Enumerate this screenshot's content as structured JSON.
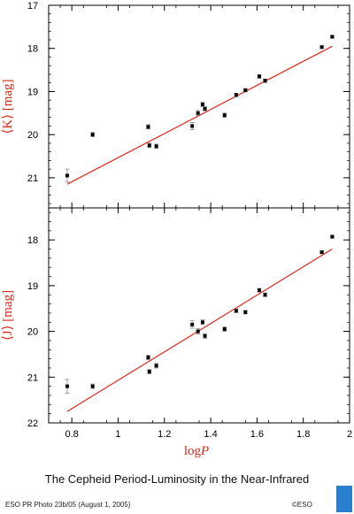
{
  "caption": "The Cepheid Period-Luminosity in the Near-Infrared",
  "credit_left": "ESO PR Photo 23b/05 (August 1, 2005)",
  "credit_right": "©ESO",
  "logo": "ESO",
  "colors": {
    "line": "#e22418",
    "label": "#d8281a",
    "points": "#000000",
    "error_bars": "#8a8a8a",
    "logo": "#2b7fd0"
  },
  "chart_data": [
    {
      "type": "scatter",
      "ylabel": "⟨K⟩ [mag]",
      "xlabel": "",
      "xlim": [
        0.7,
        2.0
      ],
      "ylim": [
        21.7,
        17.0
      ],
      "y_inverted": true,
      "xticks": [
        0.8,
        1.0,
        1.2,
        1.4,
        1.6,
        1.8,
        2.0
      ],
      "xtick_labels": [],
      "yticks": [
        17,
        18,
        19,
        20,
        21
      ],
      "ytick_labels": [
        "17",
        "18",
        "19",
        "20",
        "21"
      ],
      "grid": false,
      "series": [
        {
          "x": [
            0.78,
            0.89,
            1.13,
            1.135,
            1.165,
            1.32,
            1.345,
            1.365,
            1.375,
            1.46,
            1.51,
            1.55,
            1.61,
            1.635,
            1.88,
            1.925
          ],
          "y": [
            20.95,
            20.0,
            19.82,
            20.25,
            20.27,
            19.8,
            19.5,
            19.3,
            19.4,
            19.55,
            19.08,
            18.97,
            18.65,
            18.75,
            17.97,
            17.73
          ],
          "yerr": [
            0.15,
            0.05,
            0.05,
            0.05,
            0.05,
            0.08,
            0.06,
            0.05,
            0.05,
            0.05,
            0.04,
            0.04,
            0.04,
            0.04,
            0.03,
            0.03
          ]
        }
      ],
      "fit_line": {
        "x": [
          0.78,
          1.925
        ],
        "y": [
          21.15,
          17.95
        ]
      }
    },
    {
      "type": "scatter",
      "ylabel": "⟨J⟩ [mag]",
      "xlabel": "log P",
      "xlim": [
        0.7,
        2.0
      ],
      "ylim": [
        22.0,
        17.3
      ],
      "y_inverted": true,
      "xticks": [
        0.8,
        1.0,
        1.2,
        1.4,
        1.6,
        1.8,
        2.0
      ],
      "xtick_labels": [
        "0.8",
        "1",
        "1.2",
        "1.4",
        "1.6",
        "1.8",
        "2"
      ],
      "yticks": [
        18,
        19,
        20,
        21,
        22
      ],
      "ytick_labels": [
        "18",
        "19",
        "20",
        "21",
        "22"
      ],
      "grid": false,
      "series": [
        {
          "x": [
            0.78,
            0.89,
            1.13,
            1.135,
            1.165,
            1.32,
            1.345,
            1.365,
            1.375,
            1.46,
            1.51,
            1.55,
            1.61,
            1.635,
            1.88,
            1.925
          ],
          "y": [
            21.2,
            21.2,
            20.57,
            20.88,
            20.75,
            19.85,
            20.0,
            19.8,
            20.1,
            19.95,
            19.55,
            19.58,
            19.1,
            19.2,
            18.27,
            17.93
          ],
          "yerr": [
            0.15,
            0.05,
            0.05,
            0.05,
            0.05,
            0.08,
            0.06,
            0.05,
            0.05,
            0.05,
            0.04,
            0.04,
            0.04,
            0.04,
            0.03,
            0.03
          ]
        }
      ],
      "fit_line": {
        "x": [
          0.78,
          1.925
        ],
        "y": [
          21.75,
          18.2
        ]
      }
    }
  ]
}
